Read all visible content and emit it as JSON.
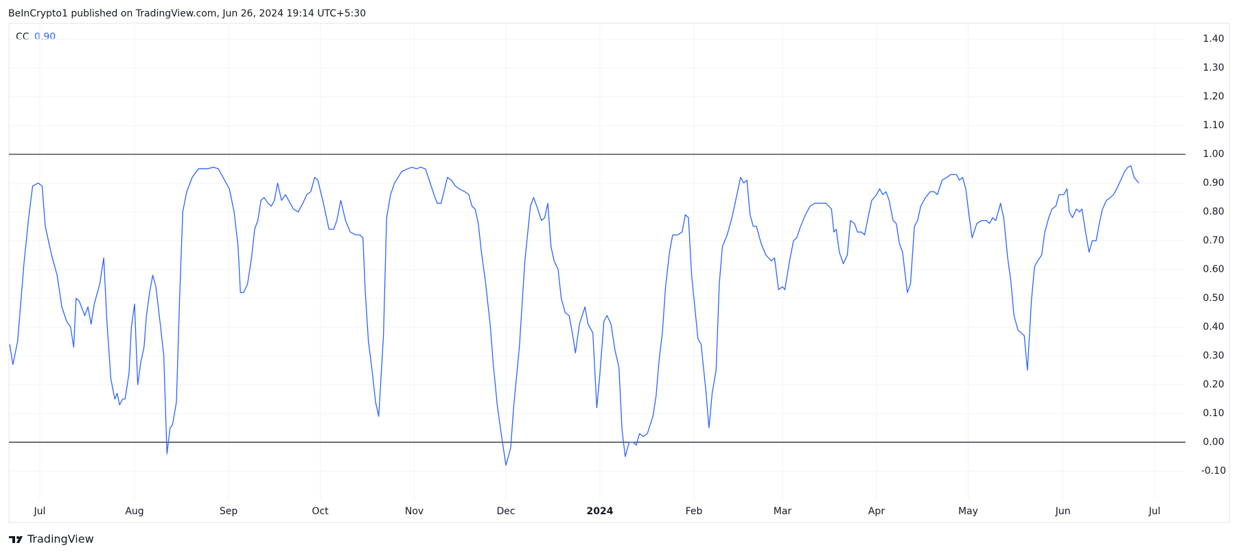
{
  "header": {
    "text": "BeInCrypto1 published on TradingView.com, Jun 26, 2024 19:14 UTC+5:30"
  },
  "footer": {
    "brand": "TradingView"
  },
  "chart_data": {
    "type": "line",
    "series": [
      {
        "name": "CC",
        "color": "#2962ff",
        "current_value": {
          "value": 0.9,
          "label": "0.90"
        },
        "x": [
          12,
          16,
          22,
          30,
          36,
          41,
          48,
          53,
          57,
          65,
          72,
          78,
          84,
          89,
          93,
          96,
          100,
          107,
          111,
          115,
          119,
          126,
          131,
          135,
          140,
          145,
          148,
          151,
          155,
          158,
          163,
          166,
          170,
          174,
          178,
          182,
          185,
          189,
          193,
          197,
          203,
          207,
          211,
          215,
          218,
          223,
          227,
          231,
          236,
          243,
          251,
          262,
          270,
          276,
          282,
          290,
          296,
          301,
          304,
          308,
          313,
          318,
          322,
          326,
          330,
          334,
          339,
          343,
          347,
          351,
          356,
          361,
          367,
          371,
          377,
          383,
          388,
          393,
          398,
          402,
          409,
          416,
          422,
          426,
          431,
          437,
          443,
          450,
          455,
          459,
          462,
          466,
          471,
          475,
          479,
          485,
          489,
          494,
          499,
          508,
          516,
          521,
          527,
          532,
          538,
          543,
          549,
          553,
          558,
          566,
          571,
          576,
          581,
          588,
          593,
          597,
          601,
          605,
          609,
          614,
          620,
          624,
          629,
          634,
          640,
          646,
          650,
          657,
          664,
          671,
          675,
          679,
          685,
          689,
          693,
          697,
          701,
          706,
          710,
          715,
          720,
          724,
          728,
          733,
          740,
          744,
          750,
          755,
          759,
          764,
          768,
          773,
          778,
          783,
          787,
          791,
          796,
          801,
          805,
          809,
          814,
          819,
          826,
          830,
          834,
          838,
          842,
          847,
          851,
          857,
          863,
          867,
          871,
          875,
          883,
          887,
          893,
          897,
          901,
          906,
          910,
          914,
          920,
          926,
          930,
          937,
          941,
          945,
          949,
          953,
          957,
          963,
          969,
          976,
          980,
          985,
          990,
          993,
          999,
          1004,
          1008,
          1013,
          1019,
          1025,
          1031,
          1037,
          1045,
          1052,
          1055,
          1058,
          1062,
          1067,
          1072,
          1076,
          1081,
          1085,
          1090,
          1094,
          1099,
          1103,
          1109,
          1113,
          1117,
          1121,
          1125,
          1130,
          1134,
          1138,
          1142,
          1148,
          1152,
          1157,
          1161,
          1165,
          1171,
          1177,
          1182,
          1186,
          1192,
          1198,
          1203,
          1210,
          1214,
          1218,
          1222,
          1226,
          1230,
          1236,
          1242,
          1248,
          1252,
          1256,
          1260,
          1266,
          1270,
          1275,
          1279,
          1283,
          1288,
          1292,
          1296,
          1300,
          1305,
          1309,
          1313,
          1318,
          1322,
          1327,
          1331,
          1336,
          1340,
          1346,
          1350,
          1353,
          1357,
          1362,
          1366,
          1369,
          1373,
          1378,
          1382,
          1387,
          1391,
          1395,
          1400,
          1405,
          1409,
          1413,
          1418,
          1423,
          1427,
          1431,
          1435,
          1441
        ],
        "values": [
          0.34,
          0.27,
          0.35,
          0.62,
          0.78,
          0.89,
          0.9,
          0.89,
          0.75,
          0.65,
          0.58,
          0.47,
          0.42,
          0.4,
          0.33,
          0.5,
          0.49,
          0.44,
          0.47,
          0.41,
          0.48,
          0.55,
          0.64,
          0.42,
          0.22,
          0.15,
          0.17,
          0.13,
          0.15,
          0.15,
          0.24,
          0.4,
          0.48,
          0.2,
          0.28,
          0.33,
          0.44,
          0.52,
          0.58,
          0.54,
          0.4,
          0.3,
          -0.04,
          0.05,
          0.06,
          0.14,
          0.5,
          0.8,
          0.87,
          0.92,
          0.95,
          0.95,
          0.955,
          0.95,
          0.92,
          0.88,
          0.8,
          0.68,
          0.52,
          0.52,
          0.55,
          0.64,
          0.74,
          0.77,
          0.84,
          0.85,
          0.83,
          0.82,
          0.84,
          0.9,
          0.84,
          0.86,
          0.83,
          0.81,
          0.8,
          0.83,
          0.86,
          0.87,
          0.92,
          0.91,
          0.83,
          0.74,
          0.74,
          0.77,
          0.84,
          0.77,
          0.73,
          0.72,
          0.72,
          0.71,
          0.52,
          0.35,
          0.24,
          0.14,
          0.09,
          0.37,
          0.78,
          0.86,
          0.9,
          0.94,
          0.95,
          0.955,
          0.95,
          0.955,
          0.95,
          0.91,
          0.86,
          0.83,
          0.83,
          0.92,
          0.91,
          0.89,
          0.88,
          0.87,
          0.86,
          0.82,
          0.81,
          0.76,
          0.66,
          0.56,
          0.41,
          0.27,
          0.13,
          0.03,
          -0.08,
          -0.02,
          0.13,
          0.33,
          0.63,
          0.82,
          0.85,
          0.82,
          0.77,
          0.78,
          0.83,
          0.68,
          0.63,
          0.6,
          0.5,
          0.45,
          0.44,
          0.38,
          0.31,
          0.41,
          0.47,
          0.41,
          0.38,
          0.12,
          0.24,
          0.42,
          0.44,
          0.41,
          0.32,
          0.26,
          0.04,
          -0.05,
          0.0,
          0.0,
          -0.01,
          0.03,
          0.02,
          0.03,
          0.09,
          0.16,
          0.29,
          0.38,
          0.54,
          0.66,
          0.72,
          0.72,
          0.73,
          0.79,
          0.78,
          0.58,
          0.36,
          0.34,
          0.18,
          0.05,
          0.17,
          0.25,
          0.55,
          0.68,
          0.72,
          0.78,
          0.83,
          0.92,
          0.9,
          0.91,
          0.79,
          0.75,
          0.75,
          0.69,
          0.65,
          0.63,
          0.64,
          0.53,
          0.54,
          0.53,
          0.63,
          0.7,
          0.71,
          0.75,
          0.79,
          0.82,
          0.83,
          0.83,
          0.83,
          0.81,
          0.73,
          0.74,
          0.66,
          0.62,
          0.65,
          0.77,
          0.76,
          0.73,
          0.73,
          0.72,
          0.79,
          0.84,
          0.86,
          0.88,
          0.86,
          0.87,
          0.84,
          0.77,
          0.76,
          0.69,
          0.66,
          0.52,
          0.55,
          0.75,
          0.77,
          0.82,
          0.85,
          0.87,
          0.87,
          0.86,
          0.91,
          0.92,
          0.93,
          0.93,
          0.91,
          0.92,
          0.88,
          0.79,
          0.71,
          0.76,
          0.77,
          0.77,
          0.76,
          0.78,
          0.77,
          0.83,
          0.78,
          0.64,
          0.56,
          0.44,
          0.39,
          0.38,
          0.37,
          0.25,
          0.49,
          0.61,
          0.63,
          0.65,
          0.73,
          0.78,
          0.81,
          0.82,
          0.86,
          0.86,
          0.88,
          0.8,
          0.78,
          0.81,
          0.8,
          0.81,
          0.74,
          0.66,
          0.7,
          0.7,
          0.76,
          0.81,
          0.84,
          0.85,
          0.86,
          0.88,
          0.91,
          0.94,
          0.955,
          0.96,
          0.92,
          0.9
        ]
      }
    ],
    "xlim": [
      11,
      1500
    ],
    "xticks": [
      {
        "value": 50,
        "label": "Jul"
      },
      {
        "value": 170,
        "label": "Aug"
      },
      {
        "value": 289,
        "label": "Sep"
      },
      {
        "value": 405,
        "label": "Oct"
      },
      {
        "value": 524,
        "label": "Nov"
      },
      {
        "value": 640,
        "label": "Dec"
      },
      {
        "value": 759,
        "label": "2024"
      },
      {
        "value": 878,
        "label": "Feb"
      },
      {
        "value": 990,
        "label": "Mar"
      },
      {
        "value": 1109,
        "label": "Apr"
      },
      {
        "value": 1225,
        "label": "May"
      },
      {
        "value": 1345,
        "label": "Jun"
      },
      {
        "value": 1461,
        "label": "Jul"
      }
    ],
    "ylim": [
      -0.2,
      1.455
    ],
    "yticks": [
      {
        "value": 1.4,
        "label": "1.40"
      },
      {
        "value": 1.3,
        "label": "1.30"
      },
      {
        "value": 1.2,
        "label": "1.20"
      },
      {
        "value": 1.1,
        "label": "1.10"
      },
      {
        "value": 1.0,
        "label": "1.00"
      },
      {
        "value": 0.9,
        "label": "0.90"
      },
      {
        "value": 0.8,
        "label": "0.80"
      },
      {
        "value": 0.7,
        "label": "0.70"
      },
      {
        "value": 0.6,
        "label": "0.60"
      },
      {
        "value": 0.5,
        "label": "0.50"
      },
      {
        "value": 0.4,
        "label": "0.40"
      },
      {
        "value": 0.3,
        "label": "0.30"
      },
      {
        "value": 0.2,
        "label": "0.20"
      },
      {
        "value": 0.1,
        "label": "0.10"
      },
      {
        "value": 0.0,
        "label": "0.00"
      },
      {
        "value": -0.1,
        "label": "-0.10"
      }
    ],
    "hlines": [
      1,
      0
    ],
    "grid": true
  }
}
